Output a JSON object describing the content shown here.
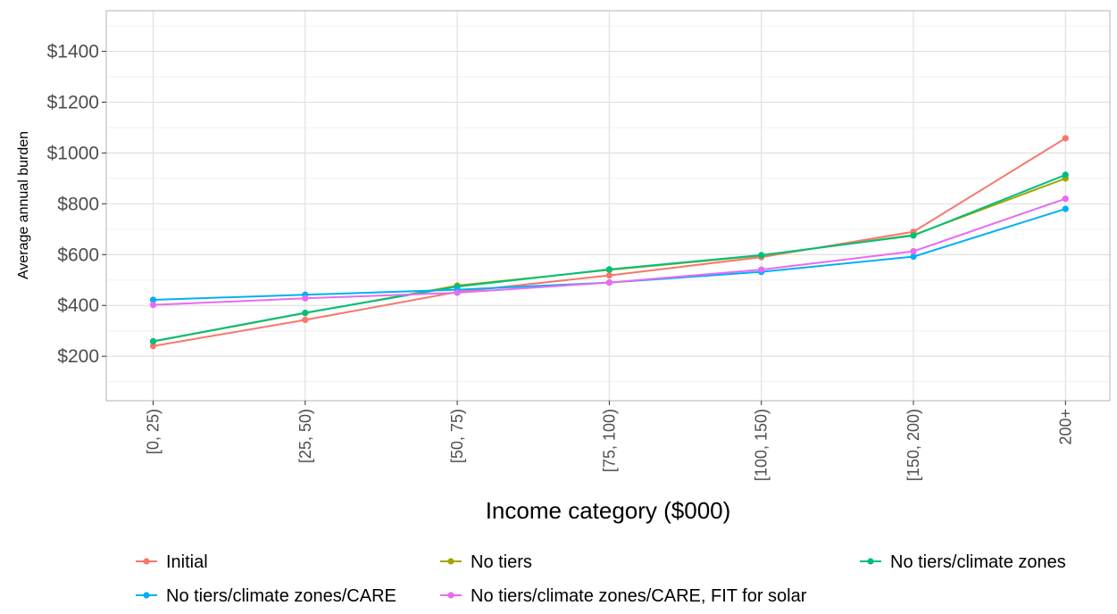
{
  "chart_data": {
    "type": "line",
    "xlabel": "Income category ($000)",
    "ylabel": "Average annual burden",
    "categories": [
      "[0, 25)",
      "[25, 50)",
      "[50, 75)",
      "[75, 100)",
      "[100, 150)",
      "[150, 200)",
      "200+"
    ],
    "ylim": [
      25,
      1560
    ],
    "yticks": [
      200,
      400,
      600,
      800,
      1000,
      1200,
      1400
    ],
    "ytick_labels": [
      "$200",
      "$400",
      "$600",
      "$800",
      "$1000",
      "$1200",
      "$1400"
    ],
    "grid": true,
    "legend_position": "bottom",
    "series": [
      {
        "name": "Initial",
        "color": "#F8766D",
        "values": [
          240,
          343,
          453,
          518,
          590,
          690,
          1058
        ]
      },
      {
        "name": "No tiers",
        "color": "#A3A500",
        "values": [
          258,
          370,
          478,
          540,
          596,
          677,
          900
        ]
      },
      {
        "name": "No tiers/climate zones",
        "color": "#00BF7D",
        "values": [
          259,
          371,
          474,
          542,
          598,
          675,
          914
        ]
      },
      {
        "name": "No tiers/climate zones/CARE",
        "color": "#00B0F6",
        "values": [
          422,
          442,
          462,
          490,
          532,
          592,
          780
        ]
      },
      {
        "name": "No tiers/climate zones/CARE, FIT for solar",
        "color": "#E76BF3",
        "values": [
          402,
          428,
          450,
          490,
          541,
          613,
          820
        ]
      }
    ]
  }
}
